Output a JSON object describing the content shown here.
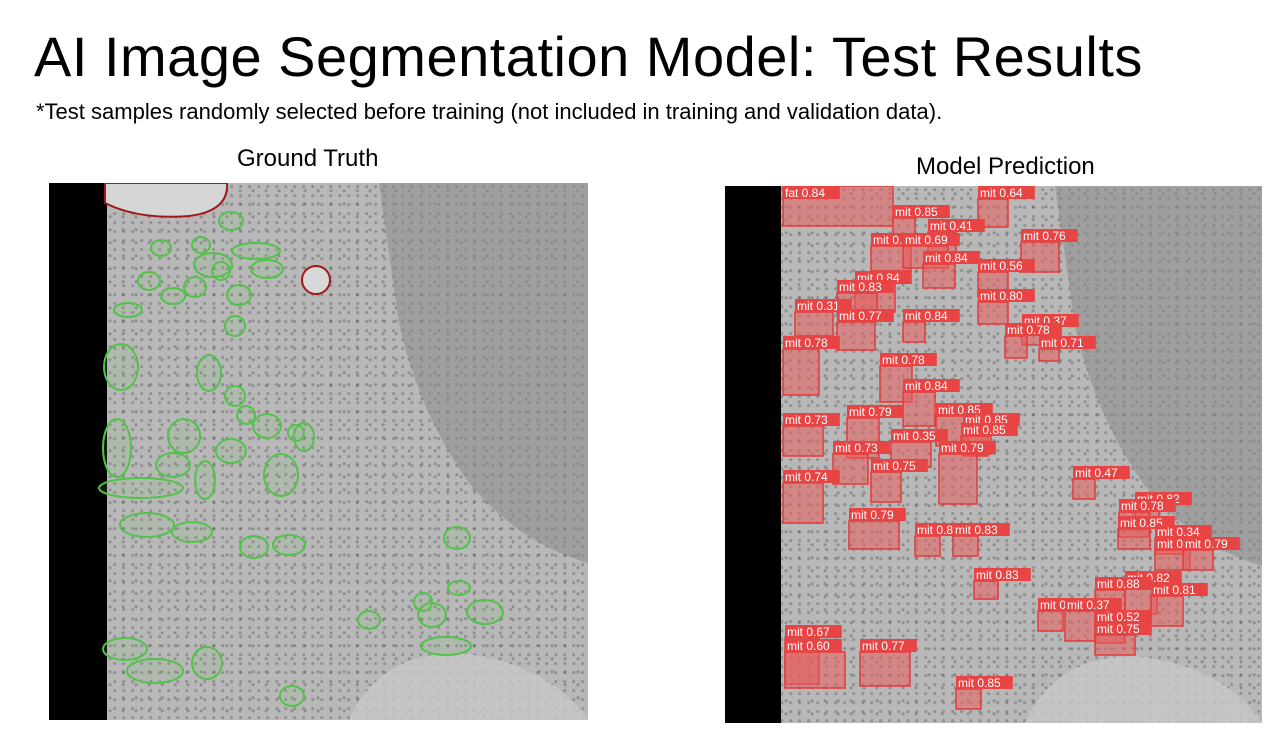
{
  "slide": {
    "title": "AI Image Segmentation Model: Test Results",
    "note": "*Test samples randomly selected before training (not included in training and validation data)."
  },
  "ground_truth": {
    "label": "Ground Truth"
  },
  "prediction": {
    "label": "Model Prediction",
    "detections": [
      "fat 0.84",
      "mit 0.64",
      "mit 0.85",
      "mit 0.41",
      "mit 0.76",
      "mit 0.85",
      "mit 0.69",
      "mit 0.84",
      "mit 0.56",
      "mit 0.84",
      "mit 0.83",
      "mit 0.80",
      "mit 0.31",
      "mit 0.77",
      "mit 0.84",
      "mit 0.37",
      "mit 0.78",
      "mit 0.71",
      "mit 0.78",
      "mit 0.78",
      "mit 0.84",
      "mit 0.73",
      "mit 0.79",
      "mit 0.85",
      "mit 0.85",
      "mit 0.85",
      "mit 0.73",
      "mit 0.35",
      "mit 0.79",
      "mit 0.75",
      "mit 0.74",
      "mit 0.47",
      "mit 0.82",
      "mit 0.78",
      "mit 0.79",
      "mit 0.85",
      "mit 0.34",
      "mit 0.85",
      "mit 0.83",
      "mit 0.75",
      "mit 0.79",
      "mit 0.83",
      "mit 0.82",
      "mit 0.88",
      "mit 0.81",
      "mit 0.83",
      "mit 0.37",
      "mit 0.52",
      "mit 0.75",
      "mit 0.67",
      "mit 0.60",
      "mit 0.77",
      "mit 0.85"
    ]
  },
  "colors": {
    "ground_truth_outline": "#52c24a",
    "fat_outline": "#a01818",
    "prediction_box": "#e23a3a",
    "prediction_fill": "#e85c5c",
    "prediction_label_bg": "#e84444",
    "image_black_border": "#000000"
  }
}
